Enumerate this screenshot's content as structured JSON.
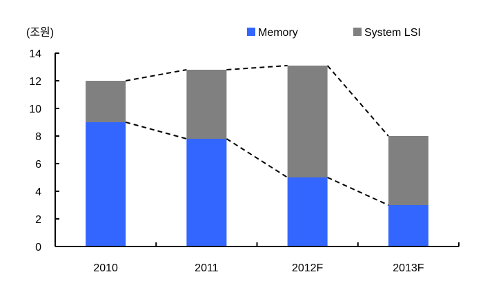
{
  "chart_data": {
    "type": "bar",
    "stacked": true,
    "unit_label": "(조원)",
    "categories": [
      "2010",
      "2011",
      "2012F",
      "2013F"
    ],
    "series": [
      {
        "name": "Memory",
        "color": "#3366FF",
        "values": [
          9.0,
          7.8,
          5.0,
          3.0
        ]
      },
      {
        "name": "System LSI",
        "color": "#808080",
        "values": [
          3.0,
          5.0,
          8.1,
          5.0
        ]
      }
    ],
    "ylim": [
      0,
      14
    ],
    "yticks": [
      0,
      2,
      4,
      6,
      8,
      10,
      12,
      14
    ],
    "legend_position": "top-right",
    "trend_lines": "dashed lines connecting bar tops and series boundaries",
    "grid": false
  }
}
